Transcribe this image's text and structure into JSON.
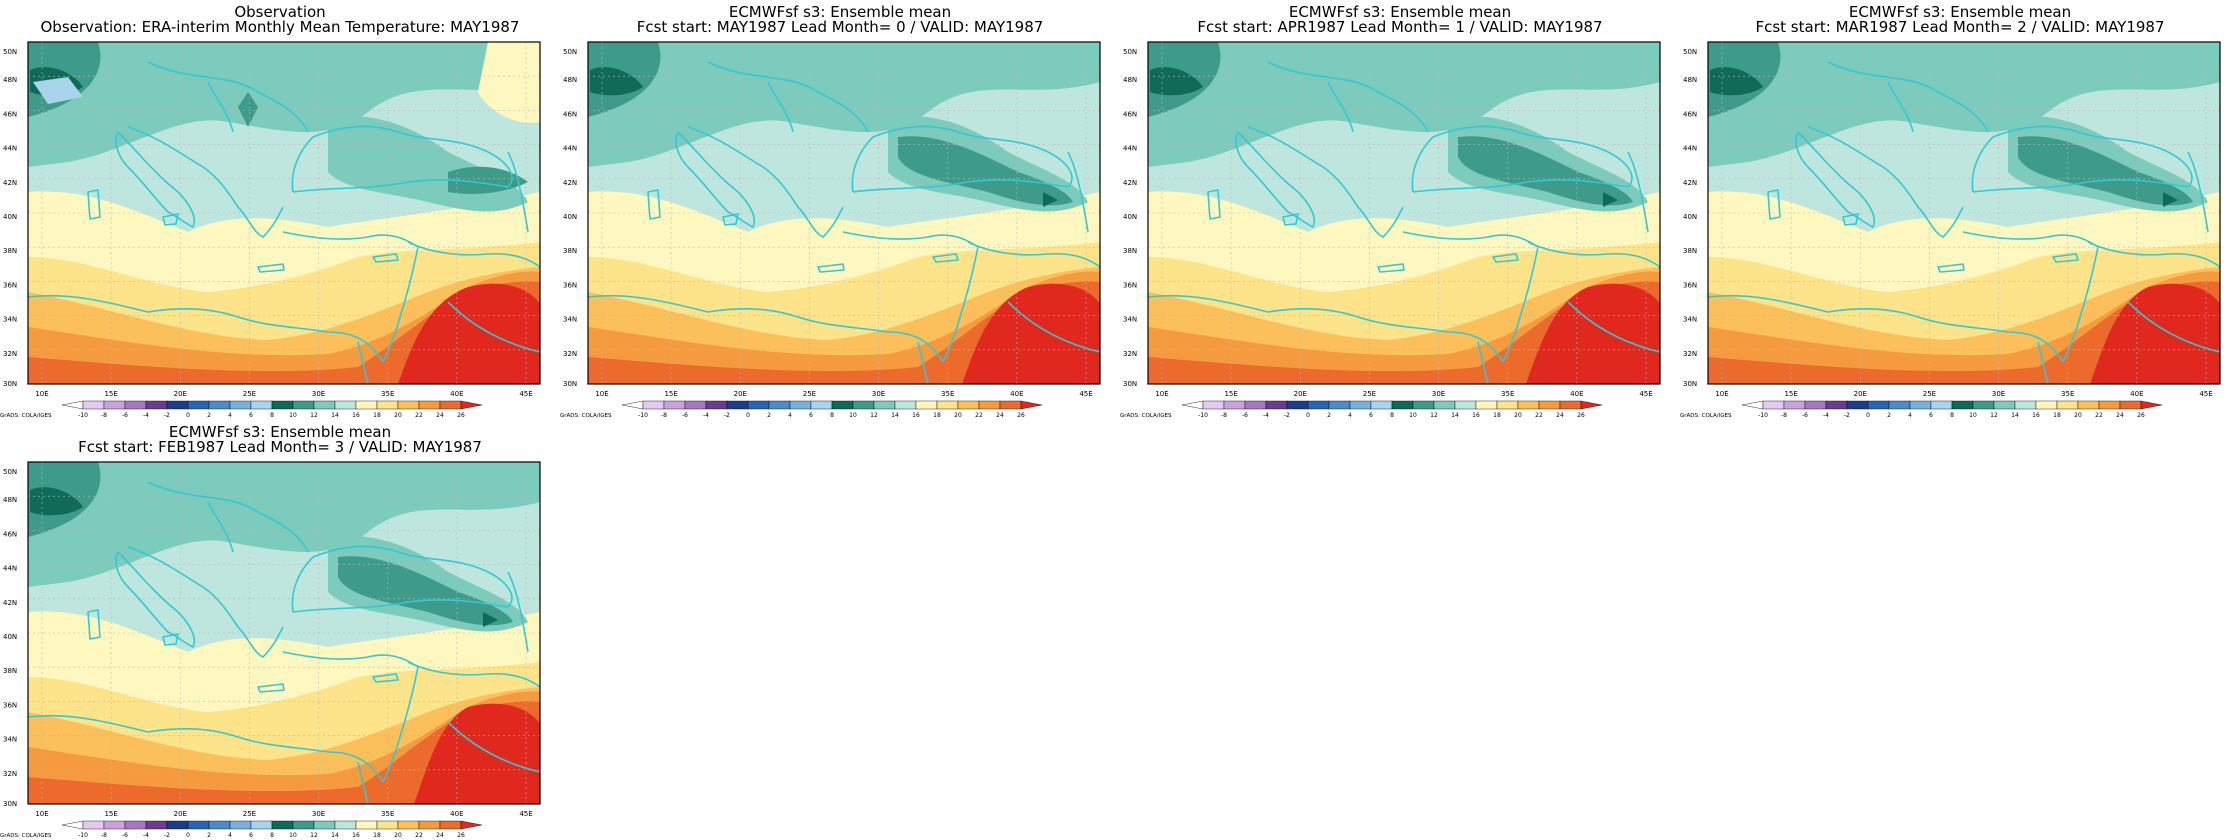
{
  "panels": [
    {
      "title1": "Observation",
      "title2": "Observation: ERA-interim Monthly Mean Temperature: MAY1987"
    },
    {
      "title1": "ECMWFsf s3: Ensemble mean",
      "title2": "Fcst start: MAY1987  Lead Month= 0 / VALID: MAY1987"
    },
    {
      "title1": "ECMWFsf s3: Ensemble mean",
      "title2": "Fcst start: APR1987  Lead Month= 1 / VALID: MAY1987"
    },
    {
      "title1": "ECMWFsf s3: Ensemble mean",
      "title2": "Fcst start: MAR1987  Lead Month= 2 / VALID: MAY1987"
    },
    {
      "title1": "ECMWFsf s3: Ensemble mean",
      "title2": "Fcst start: FEB1987  Lead Month= 3 / VALID: MAY1987"
    }
  ],
  "lat_labels": [
    "50N",
    "48N",
    "46N",
    "44N",
    "42N",
    "40N",
    "38N",
    "36N",
    "34N",
    "32N",
    "30N"
  ],
  "lon_labels": [
    "10E",
    "15E",
    "20E",
    "25E",
    "30E",
    "35E",
    "40E",
    "45E"
  ],
  "colorbar": {
    "credit": "GrADS: COLA/IGES",
    "levels": [
      "-10",
      "-8",
      "-6",
      "-4",
      "-2",
      "0",
      "2",
      "4",
      "6",
      "8",
      "10",
      "12",
      "14",
      "16",
      "18",
      "20",
      "22",
      "24",
      "26"
    ],
    "colors": [
      "#ffffff",
      "#e6c8f0",
      "#c9a2dc",
      "#a27ac4",
      "#6a3d8f",
      "#1c3c8c",
      "#2a64b4",
      "#4a8cc8",
      "#78b2dc",
      "#a8d4ec",
      "#0f6b58",
      "#3e9b8a",
      "#7ccbbd",
      "#bfe6de",
      "#fff7c0",
      "#fde38a",
      "#fbc05c",
      "#f59a3e",
      "#ec6b2c",
      "#e0281e"
    ]
  },
  "map_colors": {
    "c8": "#0f6b58",
    "c10": "#3e9b8a",
    "c12": "#7ccbbd",
    "c14": "#bfe6de",
    "c16": "#fff7c0",
    "c18": "#fde38a",
    "c20": "#fbc05c",
    "c22": "#f59a3e",
    "c24": "#ec6b2c",
    "c26": "#e0281e",
    "coast": "#33c8d2",
    "light_blue": "#a8d4ec"
  }
}
